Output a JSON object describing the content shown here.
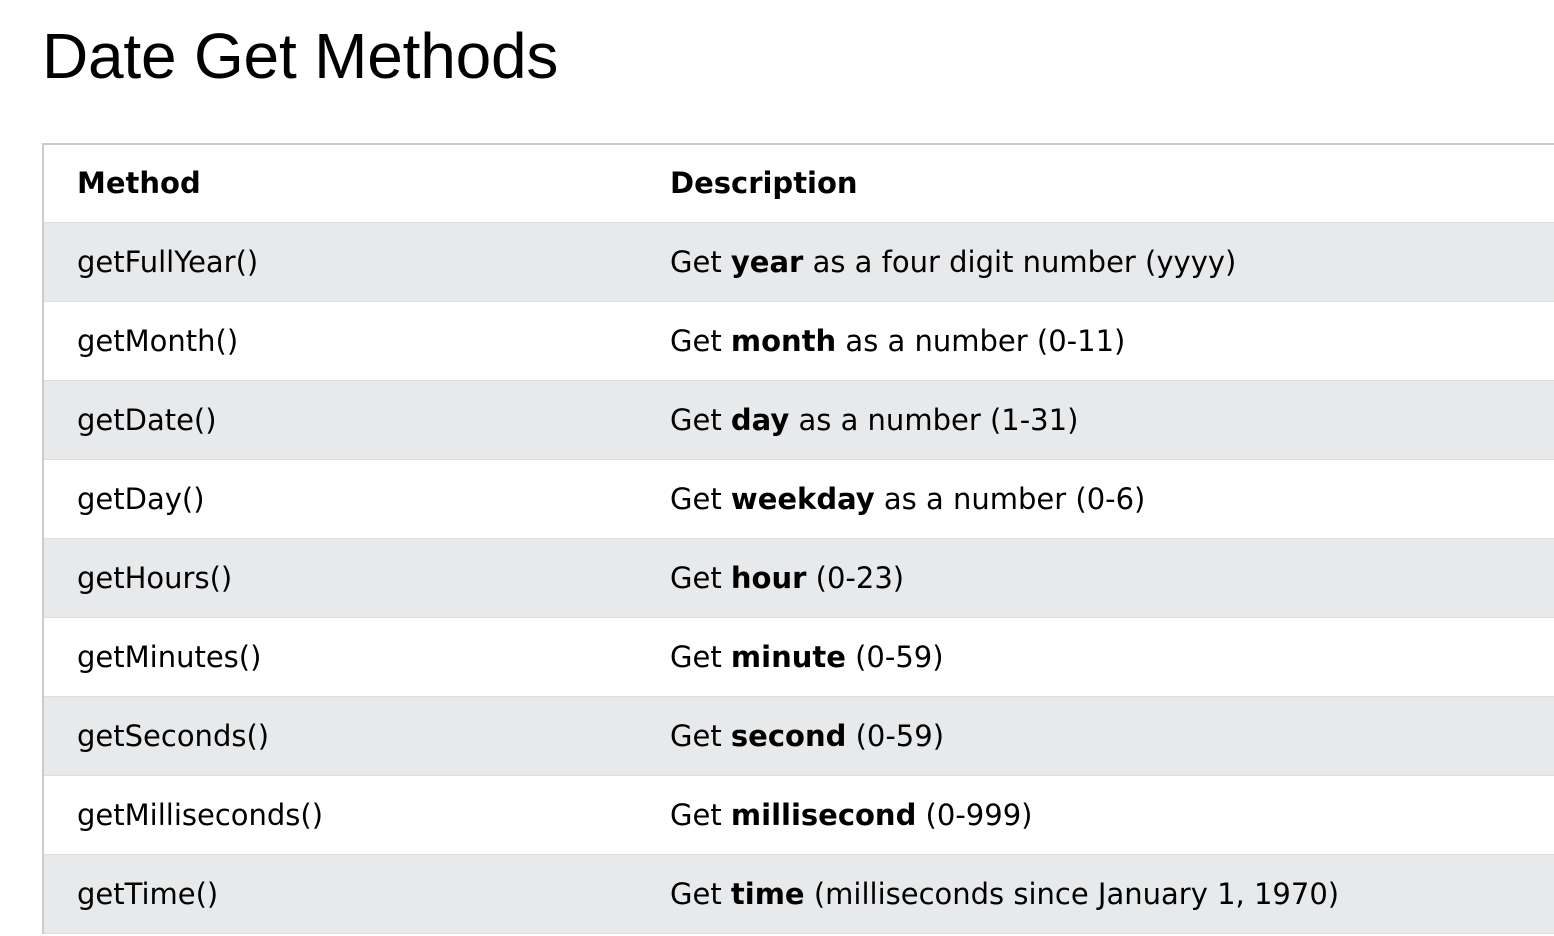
{
  "page": {
    "title": "Date Get Methods"
  },
  "table": {
    "headers": {
      "method": "Method",
      "description": "Description"
    },
    "rows": [
      {
        "method": "getFullYear()",
        "desc_prefix": "Get ",
        "desc_keyword": "year",
        "desc_suffix": " as a four digit number (yyyy)"
      },
      {
        "method": "getMonth()",
        "desc_prefix": "Get ",
        "desc_keyword": "month",
        "desc_suffix": " as a number (0-11)"
      },
      {
        "method": "getDate()",
        "desc_prefix": "Get ",
        "desc_keyword": "day",
        "desc_suffix": " as a number (1-31)"
      },
      {
        "method": "getDay()",
        "desc_prefix": "Get ",
        "desc_keyword": "weekday",
        "desc_suffix": " as a number (0-6)"
      },
      {
        "method": "getHours()",
        "desc_prefix": "Get ",
        "desc_keyword": "hour",
        "desc_suffix": " (0-23)"
      },
      {
        "method": "getMinutes()",
        "desc_prefix": "Get ",
        "desc_keyword": "minute",
        "desc_suffix": " (0-59)"
      },
      {
        "method": "getSeconds()",
        "desc_prefix": "Get ",
        "desc_keyword": "second",
        "desc_suffix": " (0-59)"
      },
      {
        "method": "getMilliseconds()",
        "desc_prefix": "Get ",
        "desc_keyword": "millisecond",
        "desc_suffix": " (0-999)"
      },
      {
        "method": "getTime()",
        "desc_prefix": "Get ",
        "desc_keyword": "time",
        "desc_suffix": " (milliseconds since January 1, 1970)"
      }
    ]
  },
  "colors": {
    "stripe": "#e7e9eb",
    "border": "#cccccc",
    "row_divider": "#dddddd",
    "text": "#000000"
  }
}
